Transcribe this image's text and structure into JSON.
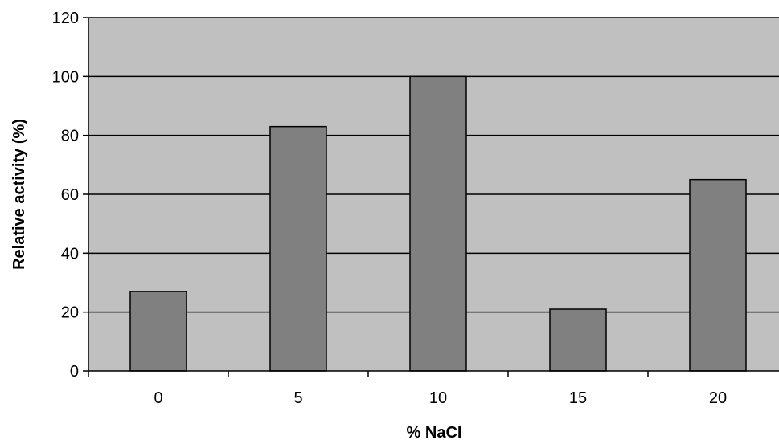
{
  "chart_data": {
    "type": "bar",
    "categories": [
      "0",
      "5",
      "10",
      "15",
      "20"
    ],
    "values": [
      27,
      83,
      100,
      21,
      65
    ],
    "title": "",
    "xlabel": "% NaCl",
    "ylabel": "Relative activity (%)",
    "ylim": [
      0,
      120
    ],
    "yticks": [
      "0",
      "20",
      "40",
      "60",
      "80",
      "100",
      "120"
    ],
    "grid": true,
    "legend": "none",
    "colors": {
      "plot_background": "#c0c0c0",
      "bar_fill": "#808080",
      "bar_stroke": "#000000",
      "gridline": "#000000"
    }
  }
}
